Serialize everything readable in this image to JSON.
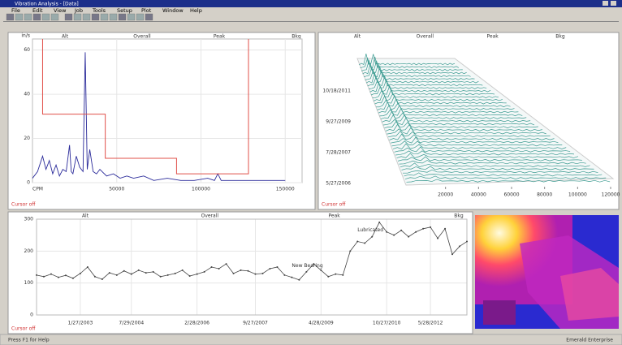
{
  "window": {
    "title": "Vibration Analysis - [Data]",
    "menu": [
      "File",
      "Edit",
      "View",
      "Job",
      "Tools",
      "Setup",
      "Plot",
      "Window",
      "Help"
    ]
  },
  "spectrum": {
    "type": "line",
    "headers": [
      "Alt",
      "Overall",
      "Peak",
      "Bkg"
    ],
    "y_unit": "in/s",
    "x_unit": "CPM",
    "cursor_text": "Cursor off",
    "xlim": [
      0,
      160000
    ],
    "ylim": [
      0,
      65
    ],
    "xticks": [
      50000,
      100000,
      150000
    ],
    "yticks": [
      0,
      20,
      40,
      60
    ],
    "series": [
      {
        "name": "Spectrum",
        "color": "#2a2a9a",
        "x": [
          0,
          3000,
          6000,
          8000,
          10000,
          12000,
          14000,
          16000,
          18000,
          20000,
          22000,
          23000,
          24000,
          26000,
          28000,
          30000,
          31300,
          32500,
          34000,
          36000,
          38000,
          40000,
          44000,
          48000,
          52000,
          56000,
          60000,
          66000,
          72000,
          80000,
          88000,
          96000,
          104000,
          108000,
          110000,
          112000,
          120000,
          130000,
          140000,
          150000
        ],
        "values": [
          2,
          5,
          12,
          6,
          10,
          4,
          8,
          3,
          6,
          5,
          17,
          5,
          4,
          12,
          7,
          5,
          59,
          6,
          15,
          5,
          4,
          6,
          3,
          4,
          2,
          3,
          2,
          3,
          1,
          2,
          1,
          1,
          2,
          1,
          4,
          1,
          1,
          1,
          1,
          1
        ]
      },
      {
        "name": "Alarm",
        "color": "#e0504a",
        "x": [
          6000,
          6000,
          43200,
          43200,
          85500,
          85500,
          128200,
          128200
        ],
        "values": [
          65,
          31,
          31,
          11,
          11,
          4,
          4,
          65
        ]
      }
    ]
  },
  "waterfall": {
    "headers": [
      "Alt",
      "Overall",
      "Peak",
      "Bkg"
    ],
    "cursor_text": "Cursor off",
    "dates": [
      "10/18/2011",
      "9/27/2009",
      "7/28/2007",
      "5/27/2006"
    ],
    "xlim": [
      0,
      120000
    ],
    "xticks": [
      20000,
      40000,
      60000,
      80000,
      100000,
      120000
    ]
  },
  "trend": {
    "type": "line",
    "headers": [
      "Alt",
      "Overall",
      "Peak",
      "Bkg"
    ],
    "cursor_text": "Cursor off",
    "color": "#444444",
    "ylim": [
      0,
      300
    ],
    "yticks": [
      0,
      100,
      200,
      300
    ],
    "categories": [
      null,
      null,
      null,
      null,
      null,
      null,
      "1/27/2003",
      null,
      null,
      null,
      null,
      null,
      null,
      "7/29/2004",
      null,
      null,
      null,
      null,
      null,
      null,
      null,
      null,
      "2/28/2006",
      null,
      null,
      null,
      null,
      null,
      null,
      null,
      "9/27/2007",
      null,
      null,
      null,
      null,
      null,
      null,
      null,
      null,
      "4/28/2009",
      null,
      null,
      null,
      null,
      null,
      null,
      null,
      null,
      "10/27/2010",
      null,
      null,
      null,
      null,
      null,
      "5/28/2012",
      null,
      null,
      null,
      null,
      null
    ],
    "values": [
      125,
      120,
      128,
      118,
      124,
      115,
      130,
      150,
      120,
      112,
      132,
      125,
      138,
      128,
      140,
      132,
      135,
      120,
      125,
      130,
      140,
      122,
      128,
      135,
      150,
      145,
      160,
      130,
      140,
      138,
      128,
      130,
      145,
      150,
      125,
      118,
      110,
      135,
      160,
      140,
      120,
      128,
      125,
      200,
      230,
      225,
      245,
      290,
      260,
      250,
      265,
      245,
      260,
      270,
      275,
      240,
      270,
      190,
      215,
      230
    ],
    "annotations": [
      {
        "text": "New Bearing",
        "index": 35
      },
      {
        "text": "Lubricated",
        "index": 44
      }
    ]
  },
  "status": {
    "left": "Press F1 for Help",
    "right": "Emerald Enterprise"
  }
}
